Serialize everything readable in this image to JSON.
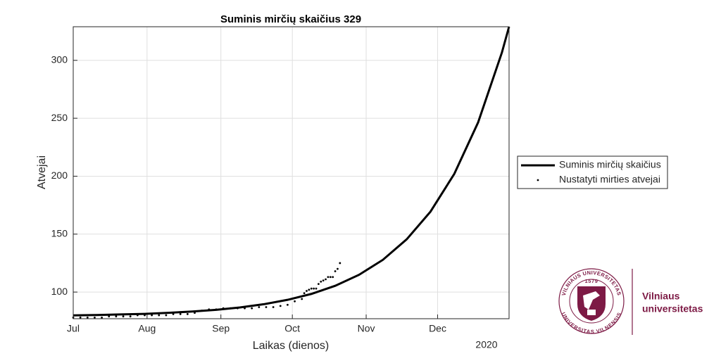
{
  "chart_data": {
    "type": "line",
    "title": "Suminis mirčių skaičius  329",
    "x_label": "Laikas (dienos)",
    "y_label": "Atvejai",
    "year_label": "2020",
    "xlim": [
      0,
      183
    ],
    "xticks": [
      {
        "value": 0,
        "label": "Jul"
      },
      {
        "value": 31,
        "label": "Aug"
      },
      {
        "value": 62,
        "label": "Sep"
      },
      {
        "value": 92,
        "label": "Oct"
      },
      {
        "value": 123,
        "label": "Nov"
      },
      {
        "value": 153,
        "label": "Dec"
      }
    ],
    "ylim": [
      77,
      329
    ],
    "yticks": [
      100,
      150,
      200,
      250,
      300
    ],
    "grid": true,
    "legend": "right",
    "series": [
      {
        "name": "Suminis mirčių skaičius",
        "color": "#000000",
        "mode": "line",
        "x": [
          0,
          10,
          20,
          30,
          40,
          50,
          60,
          70,
          80,
          90,
          100,
          110,
          120,
          130,
          140,
          150,
          160,
          170,
          180,
          183
        ],
        "values": [
          79.9,
          80.2,
          80.7,
          81.2,
          82.1,
          83.2,
          84.7,
          86.7,
          89.5,
          93.3,
          98.4,
          105.4,
          114.9,
          127.8,
          145.5,
          169.4,
          202,
          246.4,
          306.8,
          329
        ]
      },
      {
        "name": "Nustatyti mirties atvejai",
        "color": "#000000",
        "mode": "markers",
        "x": [
          0,
          3,
          6,
          9,
          12,
          15,
          18,
          21,
          24,
          27,
          30,
          33,
          36,
          39,
          42,
          45,
          48,
          51,
          54,
          57,
          60,
          63,
          66,
          69,
          72,
          75,
          78,
          81,
          84,
          87,
          90,
          93,
          96,
          97,
          98,
          99,
          100,
          101,
          102,
          103,
          104,
          105,
          106,
          107,
          108,
          109,
          110,
          111,
          112
        ],
        "values": [
          78,
          78,
          78,
          78,
          78,
          79,
          79,
          79,
          79,
          80,
          80,
          80,
          80,
          80,
          81,
          81,
          81,
          82,
          84,
          85,
          85,
          86,
          86,
          86,
          86,
          86,
          87,
          87,
          87,
          88,
          89,
          92,
          94,
          99,
          101,
          102,
          103,
          103,
          103,
          107,
          109,
          110,
          111,
          113,
          113,
          113,
          118,
          120,
          125
        ]
      }
    ]
  },
  "logo": {
    "name": "Vilniaus universitetas",
    "name_line1": "Vilniaus",
    "name_line2": "universitetas",
    "ring_top": "VILNIAUS UNIVERSITETAS",
    "ring_year": "1579",
    "ring_bottom": "UNIVERSITAS VILNENSIS"
  }
}
